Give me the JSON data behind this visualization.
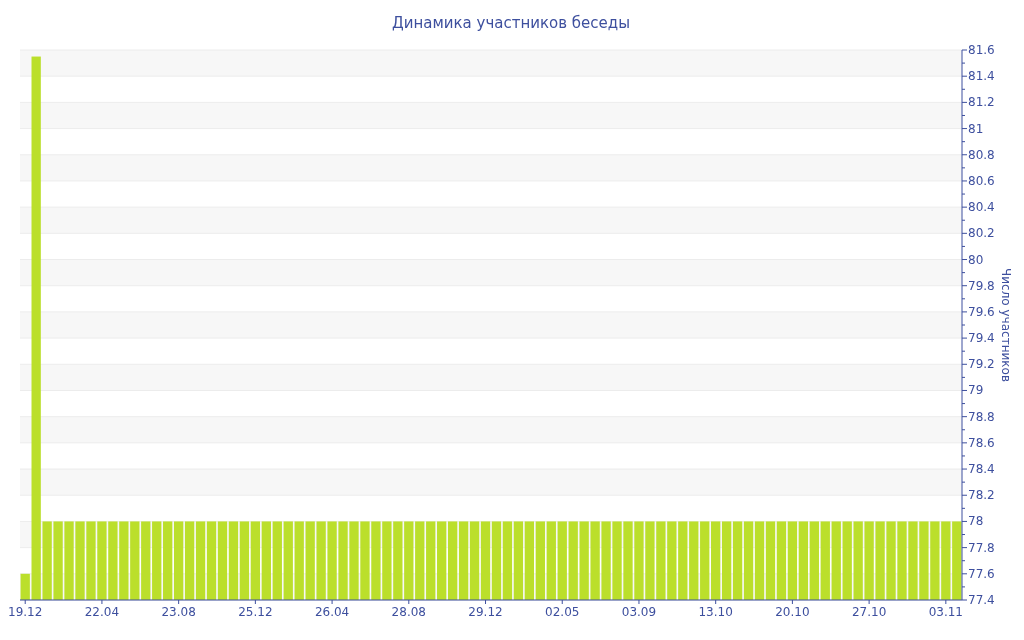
{
  "chart_data": {
    "type": "bar",
    "title": "Динамика участников беседы",
    "ylabel": "Число участников",
    "categories": [
      "19.12",
      null,
      null,
      null,
      null,
      null,
      null,
      "22.04",
      null,
      null,
      null,
      null,
      null,
      null,
      "23.08",
      null,
      null,
      null,
      null,
      null,
      null,
      "25.12",
      null,
      null,
      null,
      null,
      null,
      null,
      "26.04",
      null,
      null,
      null,
      null,
      null,
      null,
      "28.08",
      null,
      null,
      null,
      null,
      null,
      null,
      "29.12",
      null,
      null,
      null,
      null,
      null,
      null,
      "02.05",
      null,
      null,
      null,
      null,
      null,
      null,
      "03.09",
      null,
      null,
      null,
      null,
      null,
      null,
      "13.10",
      null,
      null,
      null,
      null,
      null,
      null,
      "20.10",
      null,
      null,
      null,
      null,
      null,
      null,
      "27.10",
      null,
      null,
      null,
      null,
      null,
      null,
      "03.11",
      null
    ],
    "values": [
      77.6,
      81.55,
      78,
      78,
      78,
      78,
      78,
      78,
      78,
      78,
      78,
      78,
      78,
      78,
      78,
      78,
      78,
      78,
      78,
      78,
      78,
      78,
      78,
      78,
      78,
      78,
      78,
      78,
      78,
      78,
      78,
      78,
      78,
      78,
      78,
      78,
      78,
      78,
      78,
      78,
      78,
      78,
      78,
      78,
      78,
      78,
      78,
      78,
      78,
      78,
      78,
      78,
      78,
      78,
      78,
      78,
      78,
      78,
      78,
      78,
      78,
      78,
      78,
      78,
      78,
      78,
      78,
      78,
      78,
      78,
      78,
      78,
      78,
      78,
      78,
      78,
      78,
      78,
      78,
      78,
      78,
      78,
      78,
      78,
      78,
      78
    ],
    "color": "#bbdf2b",
    "ylim": [
      77.4,
      81.6
    ],
    "yticks": [
      77.4,
      {
        "value": 77.5,
        "label": null
      },
      77.6,
      {
        "value": 77.7,
        "label": null
      },
      77.8,
      {
        "value": 77.9,
        "label": null
      },
      78,
      {
        "value": 78.1,
        "label": null
      },
      78.2,
      {
        "value": 78.3,
        "label": null
      },
      78.4,
      {
        "value": 78.5,
        "label": null
      },
      78.6,
      {
        "value": 78.7,
        "label": null
      },
      78.8,
      {
        "value": 78.9,
        "label": null
      },
      79,
      {
        "value": 79.1,
        "label": null
      },
      79.2,
      {
        "value": 79.3,
        "label": null
      },
      79.4,
      {
        "value": 79.5,
        "label": null
      },
      79.6,
      {
        "value": 79.7,
        "label": null
      },
      79.8,
      {
        "value": 79.9,
        "label": null
      },
      80,
      {
        "value": 80.1,
        "label": null
      },
      80.2,
      {
        "value": 80.3,
        "label": null
      },
      80.4,
      {
        "value": 80.5,
        "label": null
      },
      80.6,
      {
        "value": 80.7,
        "label": null
      },
      80.8,
      {
        "value": 80.9,
        "label": null
      },
      81,
      {
        "value": 81.1,
        "label": null
      },
      81.2,
      {
        "value": 81.3,
        "label": null
      },
      81.4,
      {
        "value": 81.5,
        "label": null
      },
      81.6
    ],
    "grid": true
  }
}
